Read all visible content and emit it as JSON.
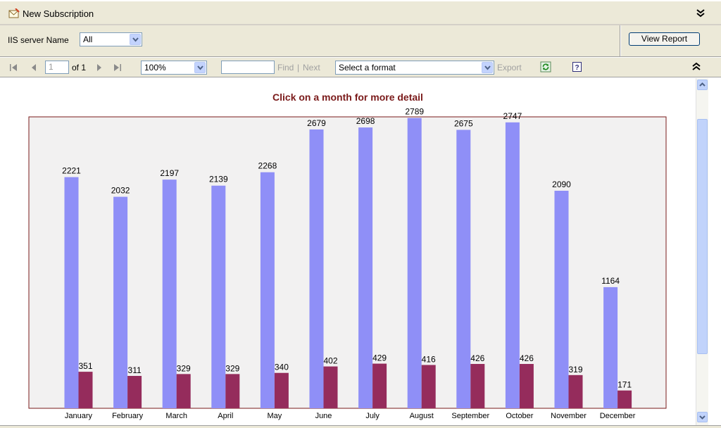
{
  "titlebar": {
    "title": "New Subscription"
  },
  "params": {
    "server_label": "IIS server Name",
    "server_value": "All",
    "view_report_label": "View Report"
  },
  "toolbar": {
    "page_value": "1",
    "of_pages": "of 1",
    "zoom_value": "100%",
    "find_label": "Find",
    "separator": "|",
    "next_label": "Next",
    "format_value": "Select a format",
    "export_label": "Export"
  },
  "chart_title": "Click on a month for more detail",
  "colors": {
    "series_a": "#8f8ff7",
    "series_b": "#952c5c",
    "frame": "#7a1a1a",
    "plot_bg": "#f2f1f1"
  },
  "chart_data": {
    "type": "bar",
    "categories": [
      "January",
      "February",
      "March",
      "April",
      "May",
      "June",
      "July",
      "August",
      "September",
      "October",
      "November",
      "December"
    ],
    "series": [
      {
        "values": [
          2221,
          2032,
          2197,
          2139,
          2268,
          2679,
          2698,
          2789,
          2675,
          2747,
          2090,
          1164
        ]
      },
      {
        "values": [
          351,
          311,
          329,
          329,
          340,
          402,
          429,
          416,
          426,
          426,
          319,
          171
        ]
      }
    ],
    "ylim": [
      0,
      2800
    ],
    "legend": "none",
    "grid": false
  }
}
